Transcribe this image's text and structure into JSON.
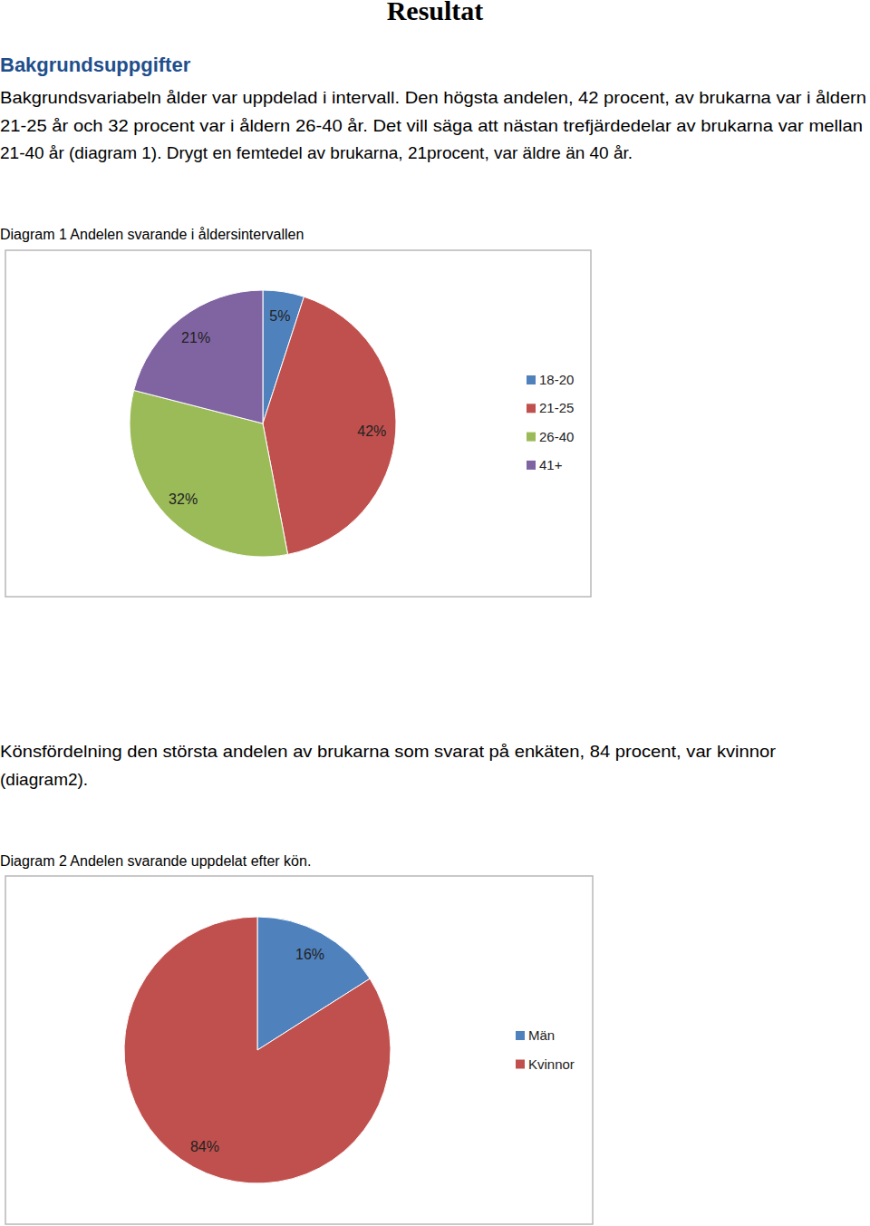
{
  "header": {
    "title": "Resultat",
    "heading": "Bakgrundsuppgifter"
  },
  "paragraphs": [
    [
      "Bakgrundsvariabeln ålder var uppdelad i intervall. Den högsta andelen, 42 procent, av brukarna var i åldern",
      "21-25 år och 32 procent var i åldern 26-40 år. Det vill säga att nästan trefjärdedelar av brukarna var mellan",
      "21-40 år (diagram 1). Drygt en femtedel av brukarna, 21procent, var äldre än 40 år."
    ],
    [
      "Könsfördelning den största andelen av brukarna som svarat på enkäten, 84 procent, var kvinnor",
      "(diagram2)."
    ]
  ],
  "chart_data": [
    {
      "type": "pie",
      "title": "Diagram 1 Andelen svarande i åldersintervallen",
      "categories": [
        "18-20",
        "21-25",
        "26-40",
        "41+"
      ],
      "values": [
        5,
        42,
        32,
        21
      ],
      "value_labels": [
        "5%",
        "42%",
        "32%",
        "21%"
      ],
      "colors": [
        "#4f81bd",
        "#c0504d",
        "#9bbb59",
        "#8064a2"
      ],
      "data_labels": true,
      "legend": "right"
    },
    {
      "type": "pie",
      "title": "Diagram 2 Andelen svarande uppdelat efter kön.",
      "categories": [
        "Män",
        "Kvinnor"
      ],
      "values": [
        16,
        84
      ],
      "value_labels": [
        "16%",
        "84%"
      ],
      "colors": [
        "#4f81bd",
        "#c0504d"
      ],
      "data_labels": true,
      "legend": "right"
    }
  ]
}
